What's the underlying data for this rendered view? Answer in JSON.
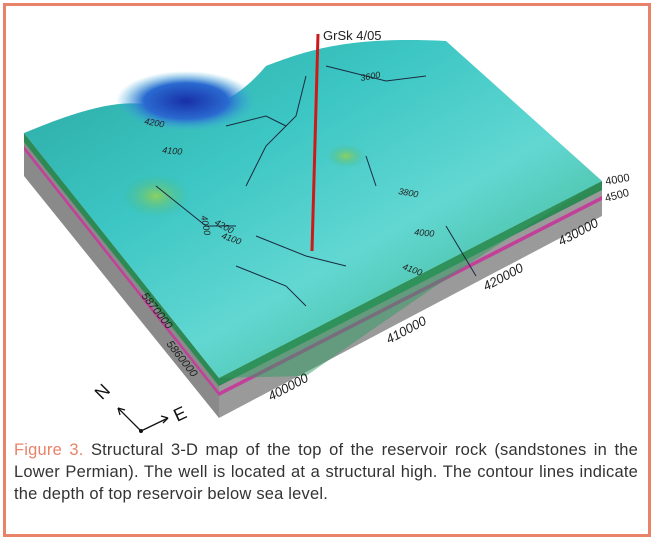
{
  "figure": {
    "well_label": "GrSk 4/05",
    "contour_labels": [
      "3600",
      "4200",
      "4100",
      "4000",
      "4200",
      "4100",
      "3800",
      "4000",
      "4100"
    ],
    "depth_labels": [
      "4000",
      "4500"
    ],
    "easting_labels": [
      "430000",
      "420000",
      "410000",
      "400000"
    ],
    "northing_labels": [
      "5870000",
      "5860000"
    ],
    "compass": {
      "north": "N",
      "east": "E"
    }
  },
  "caption": {
    "label": "Figure 3.",
    "text": "Structural 3-D map of the top of the reservoir rock (sandstones in the Lower Permian). The well is located at a structural high. The contour lines indicate the depth of top reservoir below sea level."
  }
}
